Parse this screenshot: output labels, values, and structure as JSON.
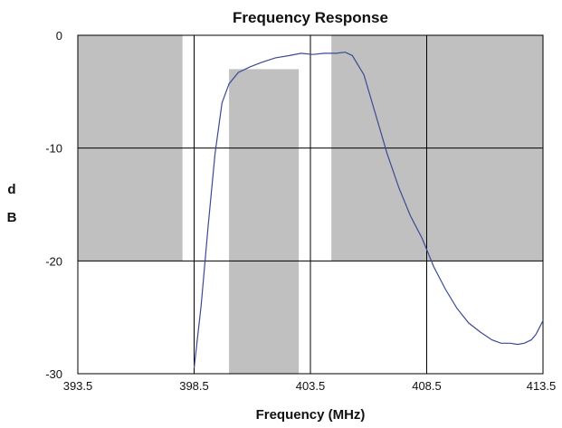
{
  "chart_data": {
    "type": "line",
    "title": "Frequency Response",
    "xlabel": "Frequency (MHz)",
    "ylabel_lines": [
      "d",
      "B"
    ],
    "xlim": [
      393.5,
      413.5
    ],
    "ylim": [
      -30,
      0
    ],
    "xticks": [
      393.5,
      398.5,
      403.5,
      408.5,
      413.5
    ],
    "xtick_labels": [
      "393.5",
      "398.5",
      "403.5",
      "408.5",
      "413.5"
    ],
    "yticks": [
      0,
      -10,
      -20,
      -30
    ],
    "ytick_labels": [
      "0",
      "-10",
      "-20",
      "-30"
    ],
    "grid": true,
    "mask_regions": [
      {
        "x0": 393.5,
        "x1": 398.0,
        "y0": -20,
        "y1": 0
      },
      {
        "x0": 400.0,
        "x1": 403.0,
        "y0": -30,
        "y1": -3
      },
      {
        "x0": 404.4,
        "x1": 413.5,
        "y0": -20,
        "y1": 0
      }
    ],
    "mask_color": "#c0c0c0",
    "line_color": "#3b4a94",
    "series": [
      {
        "x": [
          398.5,
          398.8,
          399.1,
          399.4,
          399.7,
          400.0,
          400.4,
          400.9,
          401.4,
          402.0,
          402.6,
          403.1,
          403.6,
          404.1,
          404.6,
          405.0,
          405.3,
          405.8,
          406.3,
          406.8,
          407.3,
          407.8,
          408.3,
          408.8,
          409.3,
          409.8,
          410.3,
          410.8,
          411.3,
          411.7,
          412.1,
          412.4,
          412.7,
          413.0,
          413.2,
          413.5
        ],
        "y": [
          -29.5,
          -24.0,
          -17.0,
          -10.5,
          -6.0,
          -4.3,
          -3.3,
          -2.8,
          -2.4,
          -2.0,
          -1.8,
          -1.6,
          -1.7,
          -1.6,
          -1.6,
          -1.5,
          -1.8,
          -3.5,
          -7.0,
          -10.5,
          -13.5,
          -16.0,
          -18.0,
          -20.5,
          -22.5,
          -24.2,
          -25.5,
          -26.3,
          -27.0,
          -27.3,
          -27.3,
          -27.4,
          -27.3,
          -27.0,
          -26.5,
          -25.3
        ]
      }
    ]
  }
}
